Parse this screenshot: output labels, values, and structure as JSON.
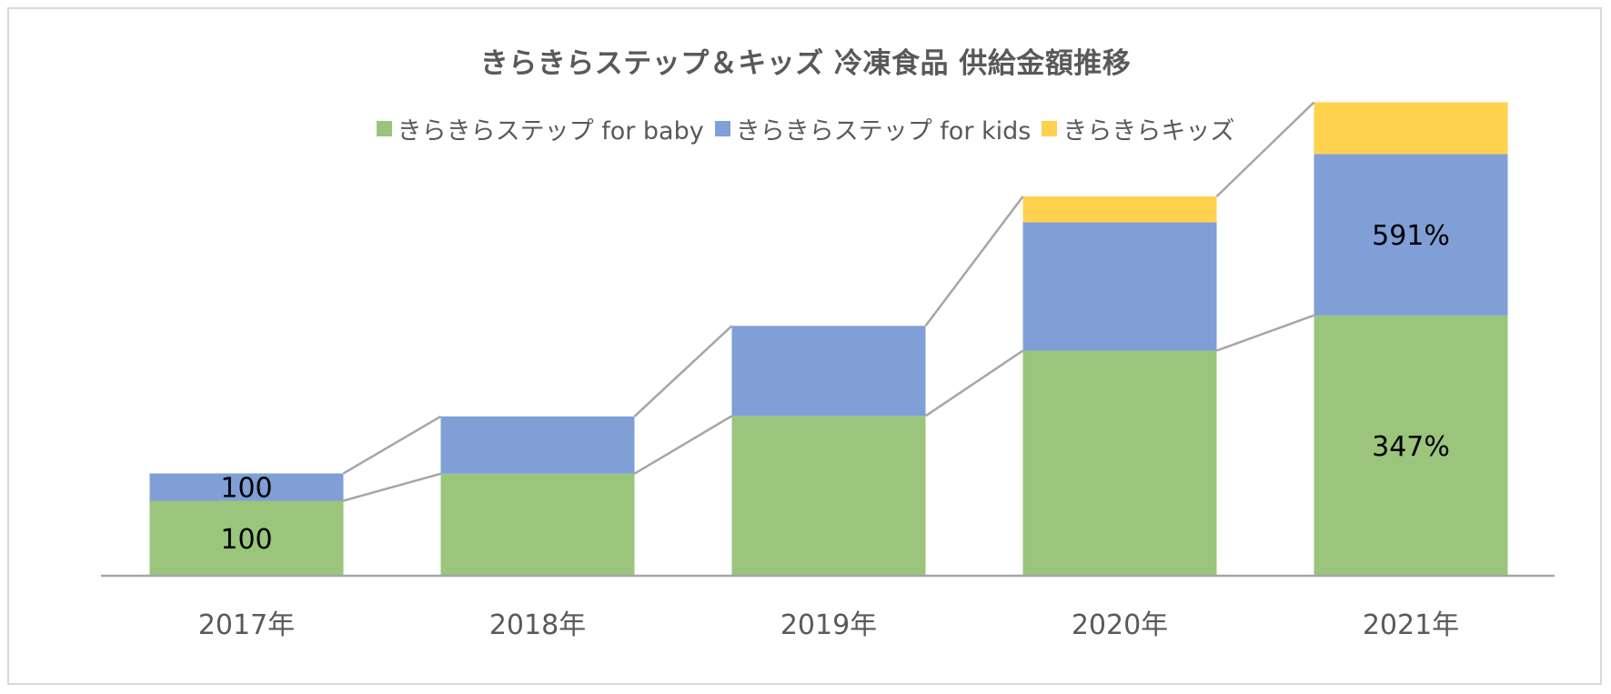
{
  "chart_data": {
    "type": "bar",
    "stacked": true,
    "title": "きらきらステップ＆キッズ 冷凍食品 供給金額推移",
    "categories": [
      "2017年",
      "2018年",
      "2019年",
      "2020年",
      "2021年"
    ],
    "series": [
      {
        "name": "きらきらステップ for baby",
        "color": "#9bc47d",
        "values": [
          100,
          136,
          213,
          300,
          347
        ],
        "data_labels": [
          "100",
          "",
          "",
          "",
          "347%"
        ]
      },
      {
        "name": "きらきらステップ for kids",
        "color": "#7f9fd6",
        "values": [
          100,
          210,
          330,
          470,
          591
        ],
        "data_labels": [
          "100",
          "",
          "",
          "",
          "591%"
        ]
      },
      {
        "name": "きらきらキッズ",
        "color": "#ffd24d",
        "values": [
          0,
          0,
          0,
          100,
          200
        ],
        "data_labels": [
          "",
          "",
          "",
          "",
          ""
        ]
      }
    ],
    "value_scale_note": "kids series relative to its 2017 value (100); segment heights drawn at 0.253 of baby units",
    "legend_position": "top",
    "grid": false,
    "connector_lines": true
  }
}
